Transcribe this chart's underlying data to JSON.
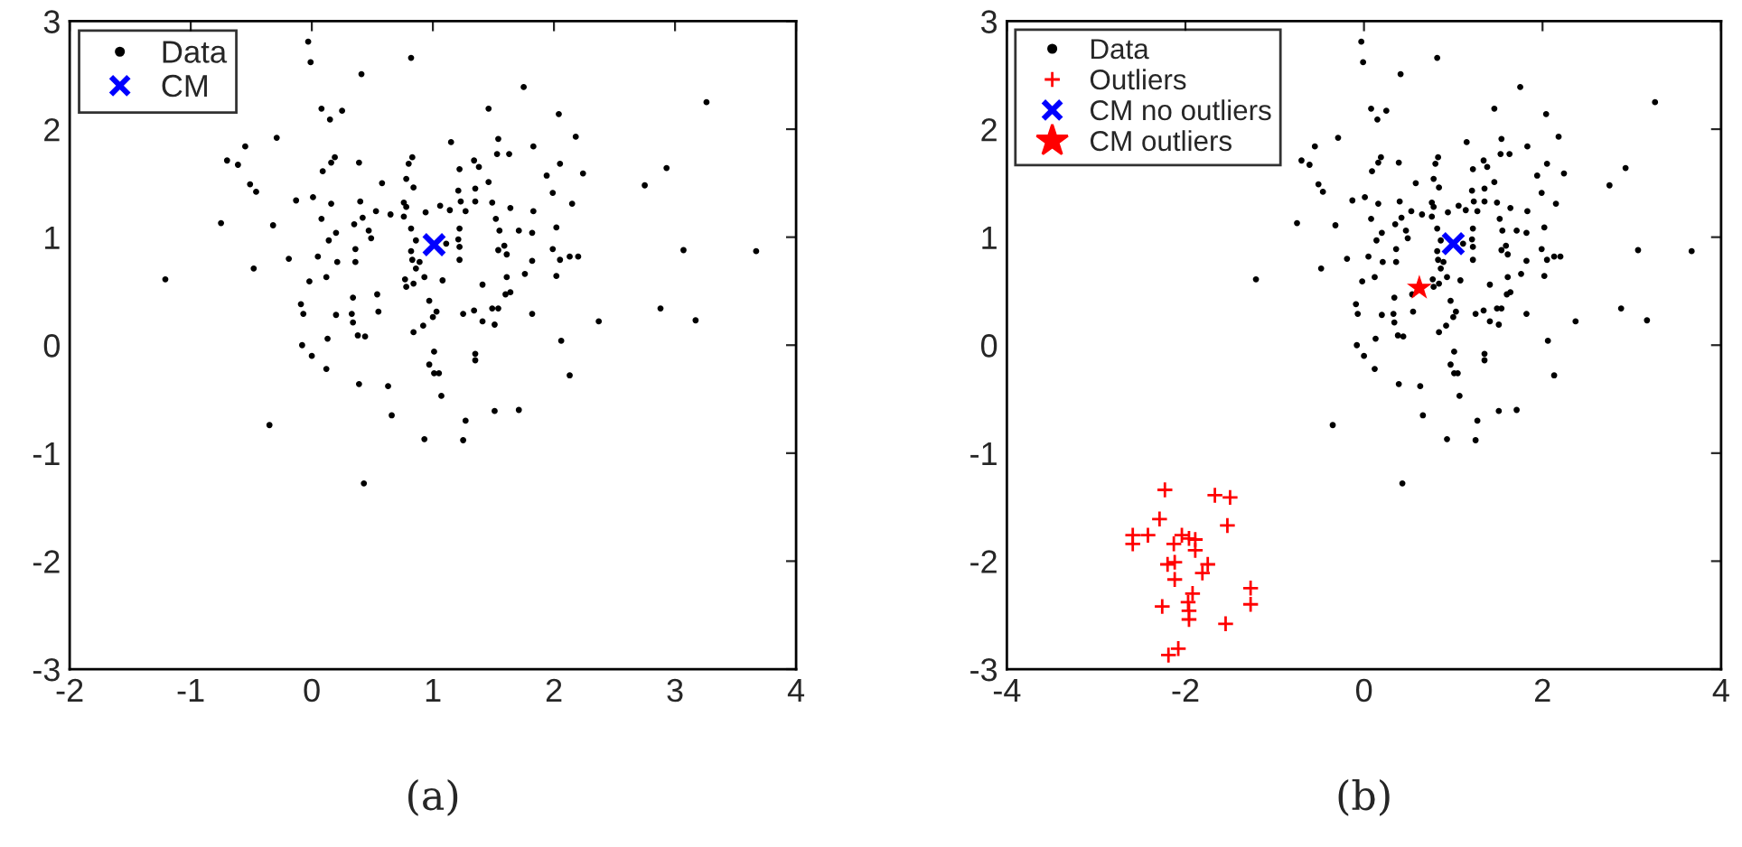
{
  "chart_data": [
    {
      "type": "scatter",
      "xlim": [
        -2,
        4
      ],
      "ylim": [
        -3,
        3
      ],
      "xticks": [
        -2,
        -1,
        0,
        1,
        2,
        3,
        4
      ],
      "yticks": [
        -3,
        -2,
        -1,
        0,
        1,
        2,
        3
      ],
      "grid": false,
      "legend": "top left",
      "annotations": [
        "(a)"
      ],
      "series": [
        {
          "name": "Data",
          "color": "#000000",
          "marker": "circle",
          "x": [
            -0.03,
            -0.01,
            0.82,
            0.41,
            1.75,
            3.26,
            1.46,
            2.04,
            0.08,
            0.25,
            0.15,
            -0.29,
            -0.55,
            -0.7,
            -0.61,
            -0.51,
            -0.46,
            0.19,
            0.16,
            0.09,
            0.39,
            0.83,
            0.8,
            1.15,
            1.54,
            1.53,
            1.63,
            1.83,
            2.18,
            1.34,
            1.38,
            1.22,
            1.46,
            1.94,
            2.05,
            2.24,
            2.75,
            2.93,
            0.58,
            0.78,
            0.84,
            1.21,
            1.35,
            1.99,
            -0.13,
            0.01,
            0.16,
            0.4,
            0.76,
            0.78,
            1.06,
            1.23,
            1.35,
            1.49,
            2.15,
            -0.75,
            -0.32,
            0.08,
            0.42,
            0.53,
            0.65,
            0.76,
            0.94,
            1.14,
            1.27,
            1.52,
            1.64,
            1.83,
            0.35,
            0.47,
            0.2,
            0.14,
            0.82,
            1.22,
            1.55,
            1.71,
            1.82,
            2.02,
            0.49,
            0.86,
            1.11,
            1.21,
            1.22,
            1.54,
            1.59,
            1.99,
            3.07,
            3.67,
            0.36,
            0.36,
            0.82,
            0.83,
            0.89,
            0.86,
            -0.19,
            0.05,
            0.21,
            1.22,
            1.61,
            1.82,
            2.05,
            2.13,
            2.2,
            -0.48,
            -1.21,
            -0.02,
            0.12,
            0.77,
            0.93,
            1.08,
            0.78,
            0.84,
            1.41,
            1.61,
            1.76,
            2.02,
            0.54,
            0.34,
            0.97,
            1.6,
            1.64,
            -0.09,
            -0.07,
            0.2,
            0.33,
            0.55,
            1.03,
            1.0,
            1.25,
            1.34,
            1.49,
            1.54,
            1.82,
            2.37,
            2.88,
            3.17,
            0.34,
            0.38,
            0.44,
            0.13,
            0.84,
            0.92,
            1.41,
            1.51,
            2.06,
            -0.08,
            0.0,
            1.01,
            1.35,
            0.12,
            0.39,
            0.63,
            0.66,
            0.97,
            1.01,
            1.05,
            1.07,
            1.35,
            0.93,
            1.25,
            1.27,
            1.51,
            1.71,
            2.13,
            -0.35,
            0.43
          ],
          "values": [
            2.81,
            2.62,
            2.66,
            2.51,
            2.39,
            2.25,
            2.19,
            2.14,
            2.19,
            2.17,
            2.09,
            1.92,
            1.84,
            1.71,
            1.67,
            1.49,
            1.42,
            1.74,
            1.69,
            1.61,
            1.69,
            1.74,
            1.68,
            1.88,
            1.91,
            1.77,
            1.77,
            1.84,
            1.93,
            1.71,
            1.65,
            1.63,
            1.51,
            1.57,
            1.68,
            1.59,
            1.48,
            1.64,
            1.5,
            1.54,
            1.46,
            1.43,
            1.45,
            1.41,
            1.34,
            1.37,
            1.31,
            1.33,
            1.32,
            1.28,
            1.29,
            1.33,
            1.33,
            1.32,
            1.31,
            1.13,
            1.11,
            1.17,
            1.18,
            1.24,
            1.21,
            1.19,
            1.23,
            1.25,
            1.24,
            1.17,
            1.27,
            1.24,
            1.12,
            1.06,
            1.04,
            0.97,
            1.08,
            1.08,
            1.06,
            1.06,
            1.04,
            1.09,
            0.99,
            0.97,
            0.94,
            0.98,
            0.91,
            0.88,
            0.92,
            0.89,
            0.88,
            0.87,
            0.89,
            0.77,
            0.87,
            0.79,
            0.77,
            0.71,
            0.8,
            0.82,
            0.77,
            0.79,
            0.84,
            0.78,
            0.79,
            0.82,
            0.82,
            0.71,
            0.61,
            0.59,
            0.63,
            0.61,
            0.63,
            0.6,
            0.54,
            0.57,
            0.56,
            0.63,
            0.66,
            0.64,
            0.47,
            0.44,
            0.41,
            0.47,
            0.49,
            0.38,
            0.29,
            0.28,
            0.29,
            0.31,
            0.31,
            0.26,
            0.29,
            0.32,
            0.34,
            0.34,
            0.29,
            0.22,
            0.34,
            0.23,
            0.21,
            0.09,
            0.08,
            0.06,
            0.12,
            0.18,
            0.22,
            0.19,
            0.04,
            0.0,
            -0.1,
            -0.06,
            -0.08,
            -0.22,
            -0.36,
            -0.38,
            -0.65,
            -0.18,
            -0.26,
            -0.26,
            -0.47,
            -0.14,
            -0.87,
            -0.88,
            -0.7,
            -0.61,
            -0.6,
            -0.28,
            -0.74,
            -1.28
          ]
        },
        {
          "name": "CM",
          "color": "#0000ff",
          "marker": "cross",
          "x": [
            1.01
          ],
          "values": [
            0.93
          ]
        }
      ]
    },
    {
      "type": "scatter",
      "xlim": [
        -4,
        4
      ],
      "ylim": [
        -3,
        3
      ],
      "xticks": [
        -4,
        -2,
        0,
        2,
        4
      ],
      "yticks": [
        -3,
        -2,
        -1,
        0,
        1,
        2,
        3
      ],
      "grid": false,
      "legend": "top left",
      "annotations": [
        "(b)"
      ],
      "series": [
        {
          "name": "Data",
          "color": "#000000",
          "marker": "circle",
          "x": [
            -0.03,
            -0.01,
            0.82,
            0.41,
            1.75,
            3.26,
            1.46,
            2.04,
            0.08,
            0.25,
            0.15,
            -0.29,
            -0.55,
            -0.7,
            -0.61,
            -0.51,
            -0.46,
            0.19,
            0.16,
            0.09,
            0.39,
            0.83,
            0.8,
            1.15,
            1.54,
            1.53,
            1.63,
            1.83,
            2.18,
            1.34,
            1.38,
            1.22,
            1.46,
            1.94,
            2.05,
            2.24,
            2.75,
            2.93,
            0.58,
            0.78,
            0.84,
            1.21,
            1.35,
            1.99,
            -0.13,
            0.01,
            0.16,
            0.4,
            0.76,
            0.78,
            1.06,
            1.23,
            1.35,
            1.49,
            2.15,
            -0.75,
            -0.32,
            0.08,
            0.42,
            0.53,
            0.65,
            0.76,
            0.94,
            1.14,
            1.27,
            1.52,
            1.64,
            1.83,
            0.35,
            0.47,
            0.2,
            0.14,
            0.82,
            1.22,
            1.55,
            1.71,
            1.82,
            2.02,
            0.49,
            0.86,
            1.11,
            1.21,
            1.22,
            1.54,
            1.59,
            1.99,
            3.07,
            3.67,
            0.36,
            0.36,
            0.82,
            0.83,
            0.89,
            0.86,
            -0.19,
            0.05,
            0.21,
            1.22,
            1.61,
            1.82,
            2.05,
            2.13,
            2.2,
            -0.48,
            -1.21,
            -0.02,
            0.12,
            0.77,
            0.93,
            1.08,
            0.78,
            0.84,
            1.41,
            1.61,
            1.76,
            2.02,
            0.54,
            0.34,
            0.97,
            1.6,
            1.64,
            -0.09,
            -0.07,
            0.2,
            0.33,
            0.55,
            1.03,
            1.0,
            1.25,
            1.34,
            1.49,
            1.54,
            1.82,
            2.37,
            2.88,
            3.17,
            0.34,
            0.38,
            0.44,
            0.13,
            0.84,
            0.92,
            1.41,
            1.51,
            2.06,
            -0.08,
            0.0,
            1.01,
            1.35,
            0.12,
            0.39,
            0.63,
            0.66,
            0.97,
            1.01,
            1.05,
            1.07,
            1.35,
            0.93,
            1.25,
            1.27,
            1.51,
            1.71,
            2.13,
            -0.35,
            0.43
          ],
          "values": [
            2.81,
            2.62,
            2.66,
            2.51,
            2.39,
            2.25,
            2.19,
            2.14,
            2.19,
            2.17,
            2.09,
            1.92,
            1.84,
            1.71,
            1.67,
            1.49,
            1.42,
            1.74,
            1.69,
            1.61,
            1.69,
            1.74,
            1.68,
            1.88,
            1.91,
            1.77,
            1.77,
            1.84,
            1.93,
            1.71,
            1.65,
            1.63,
            1.51,
            1.57,
            1.68,
            1.59,
            1.48,
            1.64,
            1.5,
            1.54,
            1.46,
            1.43,
            1.45,
            1.41,
            1.34,
            1.37,
            1.31,
            1.33,
            1.32,
            1.28,
            1.29,
            1.33,
            1.33,
            1.32,
            1.31,
            1.13,
            1.11,
            1.17,
            1.18,
            1.24,
            1.21,
            1.19,
            1.23,
            1.25,
            1.24,
            1.17,
            1.27,
            1.24,
            1.12,
            1.06,
            1.04,
            0.97,
            1.08,
            1.08,
            1.06,
            1.06,
            1.04,
            1.09,
            0.99,
            0.97,
            0.94,
            0.98,
            0.91,
            0.88,
            0.92,
            0.89,
            0.88,
            0.87,
            0.89,
            0.77,
            0.87,
            0.79,
            0.77,
            0.71,
            0.8,
            0.82,
            0.77,
            0.79,
            0.84,
            0.78,
            0.79,
            0.82,
            0.82,
            0.71,
            0.61,
            0.59,
            0.63,
            0.61,
            0.63,
            0.6,
            0.54,
            0.57,
            0.56,
            0.63,
            0.66,
            0.64,
            0.47,
            0.44,
            0.41,
            0.47,
            0.49,
            0.38,
            0.29,
            0.28,
            0.29,
            0.31,
            0.31,
            0.26,
            0.29,
            0.32,
            0.34,
            0.34,
            0.29,
            0.22,
            0.34,
            0.23,
            0.21,
            0.09,
            0.08,
            0.06,
            0.12,
            0.18,
            0.22,
            0.19,
            0.04,
            0.0,
            -0.1,
            -0.06,
            -0.08,
            -0.22,
            -0.36,
            -0.38,
            -0.65,
            -0.18,
            -0.26,
            -0.26,
            -0.47,
            -0.14,
            -0.87,
            -0.88,
            -0.7,
            -0.61,
            -0.6,
            -0.28,
            -0.74,
            -1.28
          ]
        },
        {
          "name": "Outliers",
          "color": "#ff0000",
          "marker": "plus",
          "x": [
            -2.23,
            -1.67,
            -1.5,
            -2.29,
            -1.53,
            -2.59,
            -2.59,
            -2.42,
            -2.04,
            -2.13,
            -1.96,
            -1.89,
            -1.89,
            -2.2,
            -2.12,
            -1.75,
            -1.81,
            -2.12,
            -1.92,
            -1.27,
            -1.27,
            -2.26,
            -1.97,
            -1.96,
            -1.96,
            -1.55,
            -2.19,
            -2.08
          ],
          "values": [
            -1.34,
            -1.39,
            -1.41,
            -1.61,
            -1.67,
            -1.76,
            -1.84,
            -1.76,
            -1.76,
            -1.84,
            -1.79,
            -1.8,
            -1.9,
            -2.03,
            -2.01,
            -2.03,
            -2.11,
            -2.17,
            -2.3,
            -2.25,
            -2.4,
            -2.42,
            -2.38,
            -2.46,
            -2.54,
            -2.58,
            -2.87,
            -2.81
          ]
        },
        {
          "name": "CM no outliers",
          "color": "#0000ff",
          "marker": "cross",
          "x": [
            1.0
          ],
          "values": [
            0.94
          ]
        },
        {
          "name": "CM outliers",
          "color": "#ff0000",
          "marker": "star",
          "x": [
            0.62
          ],
          "values": [
            0.53
          ]
        }
      ]
    }
  ]
}
